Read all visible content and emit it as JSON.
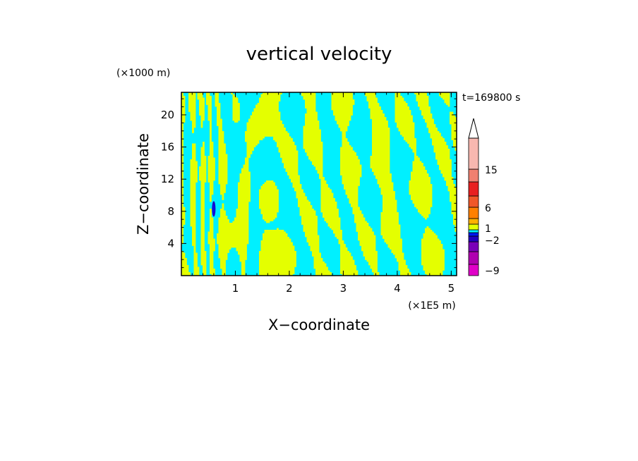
{
  "chart_data": {
    "type": "heatmap",
    "title": "vertical velocity",
    "xlabel": "X−coordinate",
    "ylabel": "Z−coordinate",
    "x_unit": "(×1E5 m)",
    "y_unit": "(×1000 m)",
    "time_label": "t=169800 s",
    "xlim": [
      0,
      5.1
    ],
    "ylim": [
      0,
      22.8
    ],
    "x_ticks": [
      1,
      2,
      3,
      4,
      5
    ],
    "y_ticks": [
      4,
      8,
      12,
      16,
      20
    ],
    "dominant_colors": {
      "negative": "#00f0ff",
      "positive": "#e4ff00"
    },
    "colorbar": {
      "levels": [
        -9,
        -2,
        1,
        6,
        15
      ],
      "labels": [
        "−9",
        "−2",
        "1",
        "6",
        "15"
      ],
      "colors": [
        "#e000c8",
        "#b000b0",
        "#7a00b8",
        "#2000c0",
        "#0018f0",
        "#00f0ff",
        "#e4ff00",
        "#ffb000",
        "#ff8000",
        "#f05828",
        "#e82020",
        "#f08070",
        "#f8b8b0"
      ],
      "extend": "max"
    },
    "note_features": "Alternating bands of weak upward (yellow) and weak downward (cyan) motion; a small dark blue downdraft near x=0.6, z=8."
  }
}
